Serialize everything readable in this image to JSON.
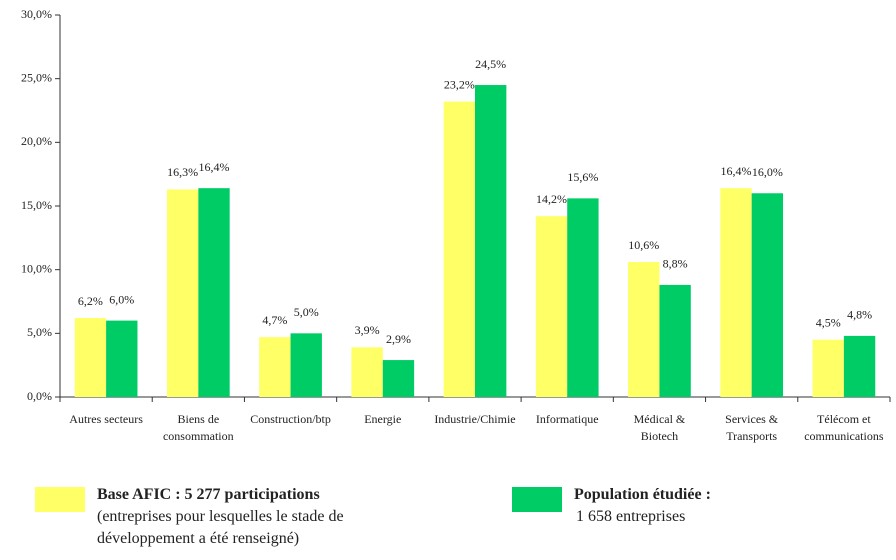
{
  "chart_data": {
    "type": "bar",
    "categories": [
      "Autres secteurs",
      "Biens de\nconsommation",
      "Construction/btp",
      "Energie",
      "Industrie/Chimie",
      "Informatique",
      "Médical &\nBiotech",
      "Services &\nTransports",
      "Télécom et\ncommunications"
    ],
    "series": [
      {
        "name": "Base AFIC : 5 277 participations",
        "description": [
          "(entreprises pour lesquelles le stade de",
          "développement a été renseigné)"
        ],
        "color": "#ffff66",
        "values": [
          6.2,
          16.3,
          4.7,
          3.9,
          23.2,
          14.2,
          10.6,
          16.4,
          4.5
        ],
        "value_labels": [
          "6,2%",
          "16,3%",
          "4,7%",
          "3,9%",
          "23,2%",
          "14,2%",
          "10,6%",
          "16,4%",
          "4,5%"
        ]
      },
      {
        "name": "Population étudiée :",
        "description": [
          "1 658 entreprises"
        ],
        "color": "#00cc66",
        "values": [
          6.0,
          16.4,
          5.0,
          2.9,
          24.5,
          15.6,
          8.8,
          16.0,
          4.8
        ],
        "value_labels": [
          "6,0%",
          "16,4%",
          "5,0%",
          "2,9%",
          "24,5%",
          "15,6%",
          "8,8%",
          "16,0%",
          "4,8%"
        ]
      }
    ],
    "ylim": [
      0,
      30
    ],
    "yticks": [
      {
        "value": 0,
        "label": "0,0%"
      },
      {
        "value": 5,
        "label": "5,0%"
      },
      {
        "value": 10,
        "label": "10,0%"
      },
      {
        "value": 15,
        "label": "15,0%"
      },
      {
        "value": 20,
        "label": "20,0%"
      },
      {
        "value": 25,
        "label": "25,0%"
      },
      {
        "value": 30,
        "label": "30,0%"
      }
    ]
  }
}
